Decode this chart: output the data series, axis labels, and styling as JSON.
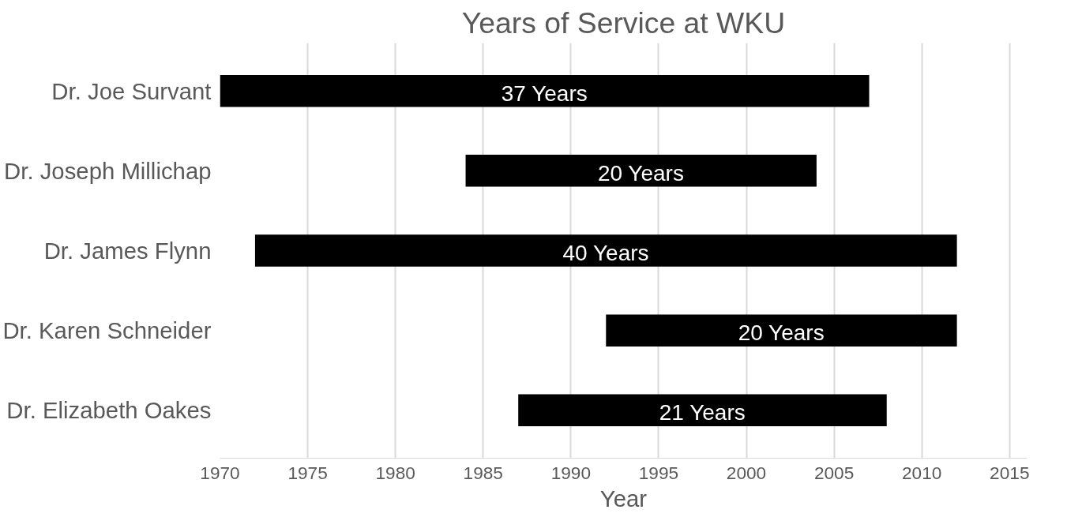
{
  "chart_data": {
    "type": "bar",
    "orientation": "horizontal",
    "title": "Years of Service at WKU",
    "xlabel": "Year",
    "categories": [
      "Dr. Joe Survant",
      "Dr. Joseph Millichap",
      "Dr. James Flynn",
      "Dr. Karen Schneider",
      "Dr. Elizabeth Oakes"
    ],
    "base": [
      1970,
      1984,
      1972,
      1992,
      1987
    ],
    "values": [
      37,
      20,
      40,
      20,
      21
    ],
    "value_labels": [
      "37 Years",
      "20 Years",
      "40 Years",
      "20 Years",
      "21 Years"
    ],
    "color": "#000000",
    "xlim": [
      1970,
      2016
    ],
    "xticks": [
      1970,
      1975,
      1980,
      1985,
      1990,
      1995,
      2000,
      2005,
      2010,
      2015
    ],
    "grid": "x"
  }
}
